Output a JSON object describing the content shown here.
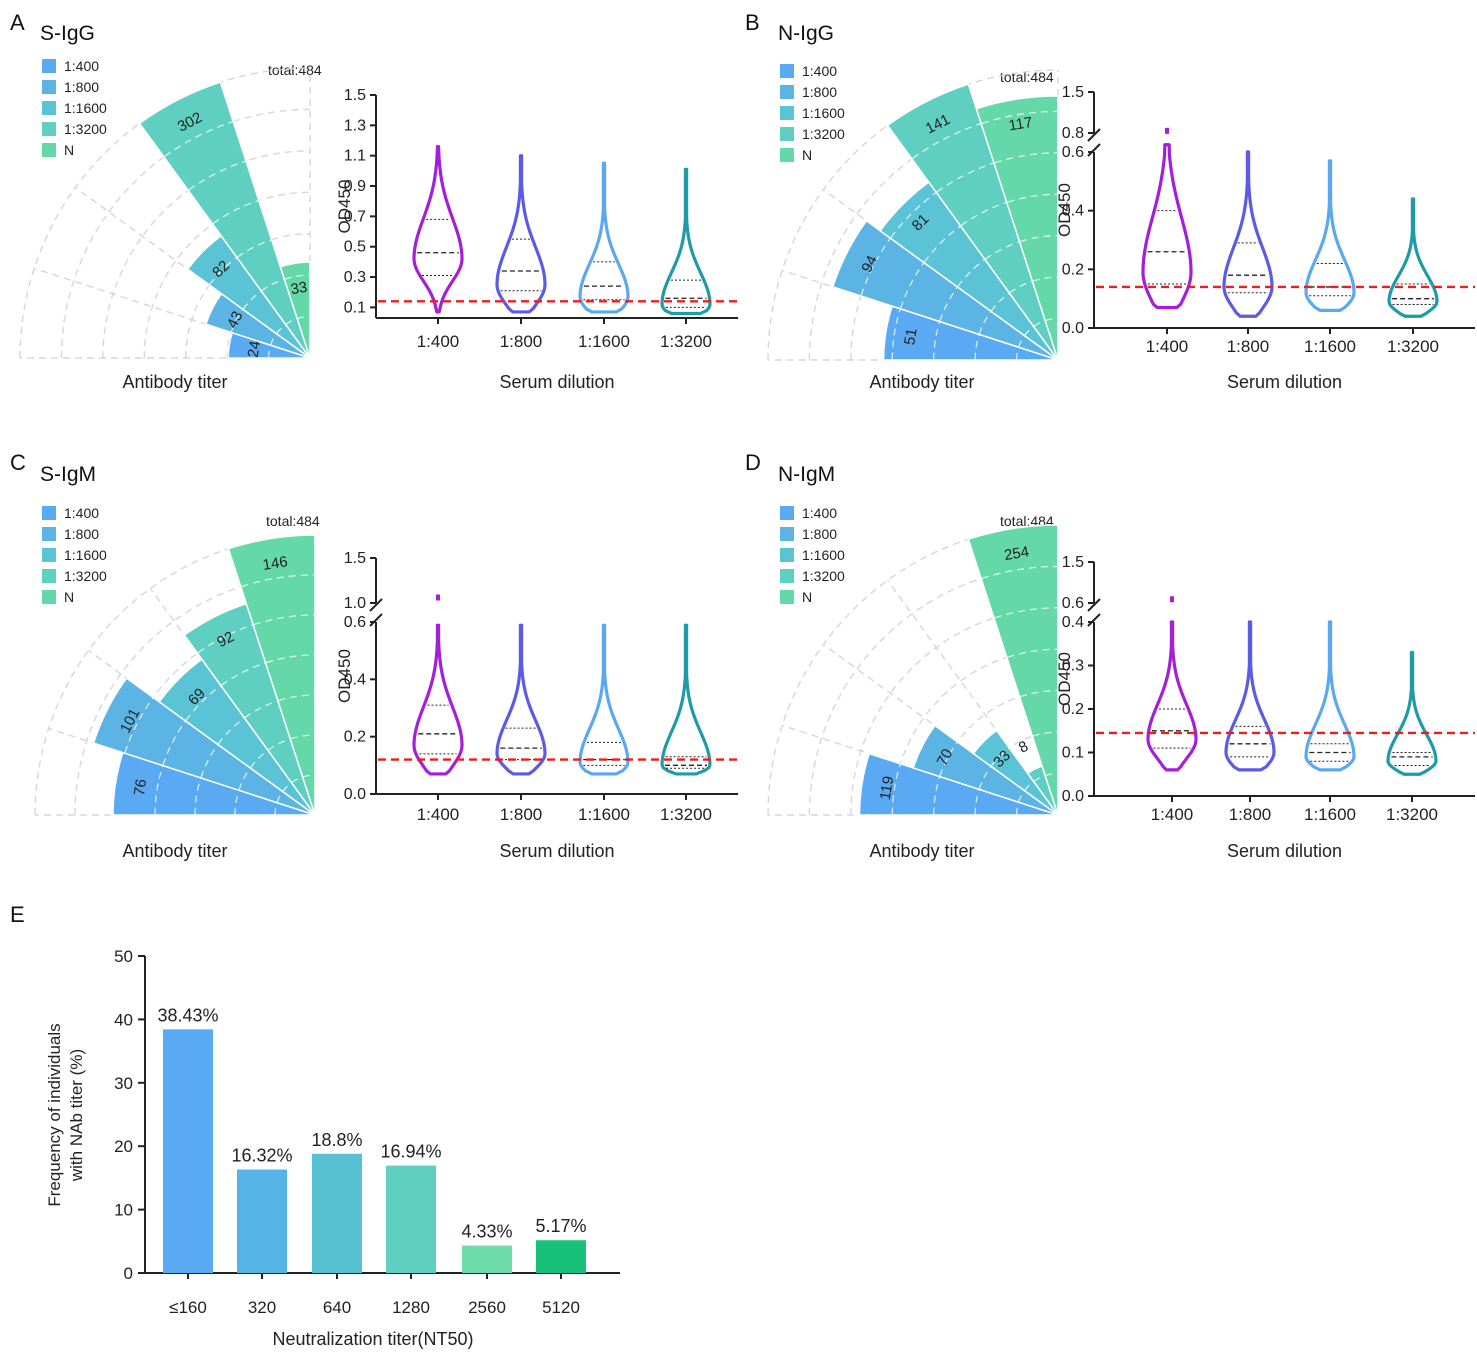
{
  "figure_panels": {
    "A": {
      "panel_label": "A",
      "title": "S-IgG",
      "legend": [
        "1:400",
        "1:800",
        "1:1600",
        "1:3200",
        "N"
      ],
      "total_label": "total:484",
      "rose_xlabel": "Antibody titer",
      "rose_values": [
        24,
        43,
        82,
        302,
        33
      ],
      "violin": {
        "ylabel": "OD450",
        "xlabel": "Serum dilution",
        "categories": [
          "1:400",
          "1:800",
          "1:1600",
          "1:3200"
        ],
        "axis_type": "linear",
        "yticks": [
          "0.1",
          "0.3",
          "0.5",
          "0.7",
          "0.9",
          "1.1",
          "1.3",
          "1.5"
        ],
        "ymin": 0.03,
        "ymax": 1.5,
        "cutoff": 0.14,
        "stats": [
          {
            "min": 0.07,
            "max": 1.16,
            "q1": 0.31,
            "median": 0.46,
            "q3": 0.68,
            "mode": 0.42
          },
          {
            "min": 0.07,
            "max": 1.1,
            "q1": 0.21,
            "median": 0.34,
            "q3": 0.55,
            "mode": 0.25
          },
          {
            "min": 0.07,
            "max": 1.05,
            "q1": 0.15,
            "median": 0.24,
            "q3": 0.4,
            "mode": 0.17
          },
          {
            "min": 0.06,
            "max": 1.01,
            "q1": 0.1,
            "median": 0.16,
            "q3": 0.28,
            "mode": 0.12
          }
        ]
      }
    },
    "B": {
      "panel_label": "B",
      "title": "N-IgG",
      "legend": [
        "1:400",
        "1:800",
        "1:1600",
        "1:3200",
        "N"
      ],
      "total_label": "total:484",
      "rose_xlabel": "Antibody titer",
      "rose_values": [
        51,
        94,
        81,
        141,
        117
      ],
      "violin": {
        "ylabel": "OD450",
        "xlabel": "Serum dilution",
        "categories": [
          "1:400",
          "1:800",
          "1:1600",
          "1:3200"
        ],
        "axis_type": "broken",
        "yticks_lower": [
          "0.0",
          "0.2",
          "0.4",
          "0.6"
        ],
        "yticks_upper": [
          "0.8",
          "1.5"
        ],
        "lower_max": 0.6,
        "upper_min": 0.8,
        "upper_max": 1.5,
        "cutoff": 0.14,
        "stats": [
          {
            "min": 0.07,
            "max": 0.6,
            "q1": 0.15,
            "median": 0.26,
            "q3": 0.4,
            "mode": 0.19,
            "outlier": 0.82
          },
          {
            "min": 0.04,
            "max": 0.6,
            "q1": 0.12,
            "median": 0.18,
            "q3": 0.29,
            "mode": 0.14
          },
          {
            "min": 0.06,
            "max": 0.57,
            "q1": 0.11,
            "median": 0.14,
            "q3": 0.22,
            "mode": 0.12
          },
          {
            "min": 0.04,
            "max": 0.44,
            "q1": 0.08,
            "median": 0.1,
            "q3": 0.15,
            "mode": 0.09
          }
        ]
      }
    },
    "C": {
      "panel_label": "C",
      "title": "S-IgM",
      "legend": [
        "1:400",
        "1:800",
        "1:1600",
        "1:3200",
        "N"
      ],
      "total_label": "total:484",
      "rose_xlabel": "Antibody titer",
      "rose_values": [
        76,
        101,
        69,
        92,
        146
      ],
      "violin": {
        "ylabel": "OD450",
        "xlabel": "Serum dilution",
        "categories": [
          "1:400",
          "1:800",
          "1:1600",
          "1:3200"
        ],
        "axis_type": "broken",
        "yticks_lower": [
          "0.0",
          "0.2",
          "0.4",
          "0.6"
        ],
        "yticks_upper": [
          "1.0",
          "1.5"
        ],
        "lower_max": 0.6,
        "upper_min": 1.0,
        "upper_max": 1.5,
        "cutoff": 0.12,
        "stats": [
          {
            "min": 0.07,
            "max": 0.6,
            "q1": 0.14,
            "median": 0.21,
            "q3": 0.31,
            "mode": 0.17,
            "outlier": 1.05
          },
          {
            "min": 0.07,
            "max": 0.6,
            "q1": 0.12,
            "median": 0.16,
            "q3": 0.23,
            "mode": 0.14
          },
          {
            "min": 0.07,
            "max": 0.6,
            "q1": 0.1,
            "median": 0.12,
            "q3": 0.18,
            "mode": 0.11
          },
          {
            "min": 0.07,
            "max": 0.6,
            "q1": 0.09,
            "median": 0.1,
            "q3": 0.13,
            "mode": 0.1
          }
        ]
      }
    },
    "D": {
      "panel_label": "D",
      "title": "N-IgM",
      "legend": [
        "1:400",
        "1:800",
        "1:1600",
        "1:3200",
        "N"
      ],
      "total_label": "total:484",
      "rose_xlabel": "Antibody titer",
      "rose_values": [
        119,
        70,
        33,
        8,
        254
      ],
      "violin": {
        "ylabel": "OD450",
        "xlabel": "Serum dilution",
        "categories": [
          "1:400",
          "1:800",
          "1:1600",
          "1:3200"
        ],
        "axis_type": "broken",
        "yticks_lower": [
          "0.0",
          "0.1",
          "0.2",
          "0.3",
          "0.4"
        ],
        "yticks_upper": [
          "0.6",
          "1.5"
        ],
        "lower_max": 0.4,
        "upper_min": 0.6,
        "upper_max": 1.5,
        "cutoff": 0.145,
        "stats": [
          {
            "min": 0.06,
            "max": 0.4,
            "q1": 0.11,
            "median": 0.15,
            "q3": 0.2,
            "mode": 0.13,
            "outlier": 0.66
          },
          {
            "min": 0.06,
            "max": 0.4,
            "q1": 0.09,
            "median": 0.12,
            "q3": 0.16,
            "mode": 0.1
          },
          {
            "min": 0.06,
            "max": 0.4,
            "q1": 0.08,
            "median": 0.1,
            "q3": 0.12,
            "mode": 0.09
          },
          {
            "min": 0.05,
            "max": 0.33,
            "q1": 0.07,
            "median": 0.09,
            "q3": 0.1,
            "mode": 0.08
          }
        ]
      }
    }
  },
  "colors": {
    "rose": [
      "#59a9f3",
      "#5bb4e4",
      "#5bc3d6",
      "#5ecfc0",
      "#64d8a8"
    ],
    "violin": [
      "#a31fd9",
      "#5b5be6",
      "#5aa8f0",
      "#1f9aa8"
    ],
    "cutoff": "#ee1c1c",
    "grid": "#d7d7d7",
    "bars": [
      "#59a9f3",
      "#56b3e6",
      "#55c1d3",
      "#5ecfc0",
      "#6ddbaa",
      "#19c07a"
    ]
  },
  "chart_data": {
    "type": "bar",
    "panel_label": "E",
    "categories": [
      "≤160",
      "320",
      "640",
      "1280",
      "2560",
      "5120"
    ],
    "values": [
      38.43,
      16.32,
      18.8,
      16.94,
      4.33,
      5.17
    ],
    "value_labels": [
      "38.43%",
      "16.32%",
      "18.8%",
      "16.94%",
      "4.33%",
      "5.17%"
    ],
    "ylabel_line1": "Frequency of individuals",
    "ylabel_line2": "with NAb titer (%)",
    "xlabel": "Neutralization titer(NT50)",
    "yticks": [
      "0",
      "10",
      "20",
      "30",
      "40",
      "50"
    ],
    "ylim": [
      0,
      50
    ]
  }
}
